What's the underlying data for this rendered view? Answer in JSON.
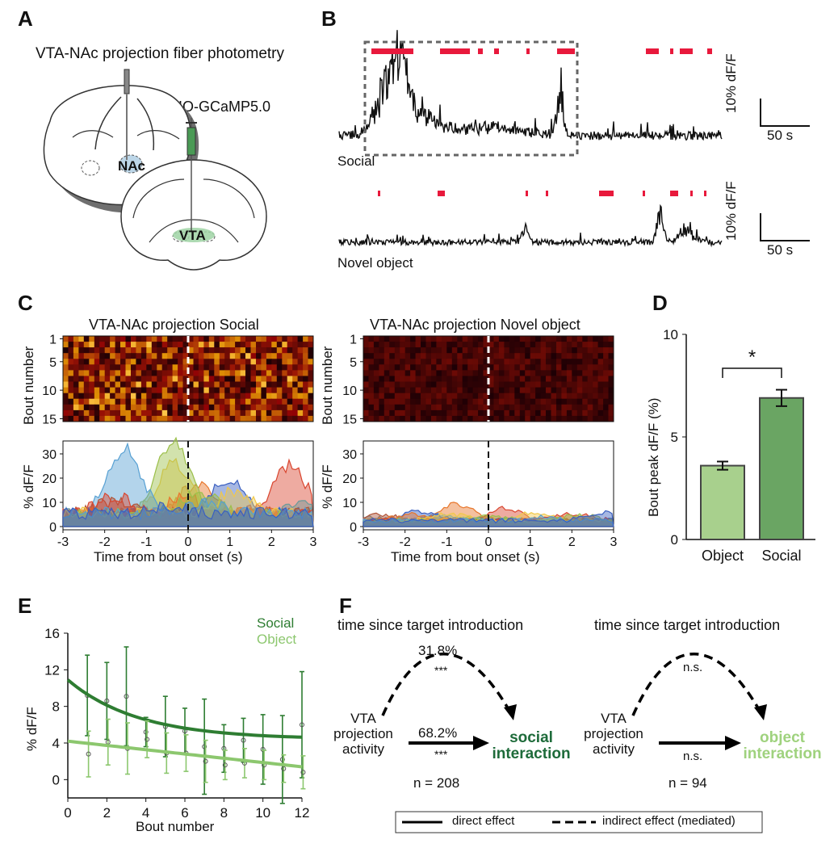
{
  "panels": {
    "a": "A",
    "b": "B",
    "c": "C",
    "d": "D",
    "e": "E",
    "f": "F"
  },
  "panel_a": {
    "title": "VTA-NAc projection fiber photometry",
    "virus": "DIO-GCaMP5.0",
    "nac_label": "NAc",
    "vta_label": "VTA",
    "colors": {
      "nac": "#bcd6e8",
      "vta": "#9fd3a4",
      "syringe": "#4a9a55"
    }
  },
  "panel_b": {
    "social_label": "Social",
    "object_label": "Novel object",
    "scale_y": "10% dF/F",
    "scale_x": "50 s",
    "event_color": "#e8193c"
  },
  "panel_c": {
    "social_title": "VTA-NAc projection Social",
    "object_title": "VTA-NAc projection Novel object",
    "heatmap_ylabel": "Bout number",
    "heatmap_yticks": [
      "1",
      "5",
      "10",
      "15"
    ],
    "trace_ylabel": "% dF/F",
    "trace_yticks": [
      "0",
      "10",
      "20",
      "30"
    ],
    "xticks": [
      "-3",
      "-2",
      "-1",
      "0",
      "1",
      "2",
      "3"
    ],
    "xlabel": "Time from bout onset (s)"
  },
  "chart_data": [
    {
      "type": "bar",
      "panel": "D",
      "categories": [
        "Object",
        "Social"
      ],
      "values": [
        3.6,
        6.9
      ],
      "errors": [
        0.2,
        0.4
      ],
      "ylabel": "Bout peak dF/F (%)",
      "ylim": [
        0,
        10
      ],
      "yticks": [
        "0",
        "5",
        "10"
      ],
      "significance": "*",
      "colors": [
        "#a8d08d",
        "#6aa563"
      ]
    },
    {
      "type": "scatter",
      "panel": "E",
      "xlabel": "Bout number",
      "ylabel": "% dF/F",
      "xlim": [
        0,
        12
      ],
      "ylim": [
        -2,
        16
      ],
      "xticks": [
        "0",
        "2",
        "4",
        "6",
        "8",
        "10",
        "12"
      ],
      "yticks": [
        "0",
        "4",
        "8",
        "12",
        "16"
      ],
      "series": [
        {
          "name": "Social",
          "color": "#2e7d32",
          "x": [
            1,
            2,
            3,
            4,
            5,
            6,
            7,
            8,
            9,
            10,
            11,
            12
          ],
          "y": [
            9.2,
            8.6,
            9.1,
            5.2,
            5.8,
            5.3,
            3.6,
            3.4,
            4.3,
            3.3,
            2.2,
            6.0
          ],
          "err": [
            4.4,
            4.2,
            5.4,
            1.6,
            3.3,
            2.5,
            5.2,
            2.6,
            2.4,
            3.8,
            4.8,
            5.8
          ],
          "fit": [
            10.9,
            4.4
          ]
        },
        {
          "name": "Object",
          "color": "#8cc76e",
          "x": [
            1,
            2,
            3,
            4,
            5,
            6,
            7,
            8,
            9,
            10,
            11,
            12
          ],
          "y": [
            2.8,
            4.1,
            3.4,
            4.4,
            2.9,
            2.9,
            2.0,
            1.6,
            1.8,
            1.6,
            1.2,
            0.8
          ],
          "err": [
            2.5,
            2.5,
            2.8,
            2.0,
            2.2,
            2.0,
            2.3,
            1.6,
            1.6,
            1.6,
            1.5,
            1.8
          ],
          "fit": [
            4.2,
            1.4
          ]
        }
      ]
    }
  ],
  "panel_f": {
    "mediator": "time since target introduction",
    "left": {
      "indirect": "31.8%",
      "indirect_sig": "***",
      "direct": "68.2%",
      "direct_sig": "***",
      "source": [
        "VTA",
        "projection",
        "activity"
      ],
      "target": [
        "social",
        "interaction"
      ],
      "n": "n = 208",
      "target_color": "#1e6b3a"
    },
    "right": {
      "indirect_sig": "n.s.",
      "direct_sig": "n.s.",
      "source": [
        "VTA",
        "projection",
        "activity"
      ],
      "target": [
        "object",
        "interaction"
      ],
      "n": "n = 94",
      "target_color": "#9fd27e"
    },
    "legend": {
      "direct": "direct effect",
      "indirect": "indirect effect (mediated)"
    }
  }
}
